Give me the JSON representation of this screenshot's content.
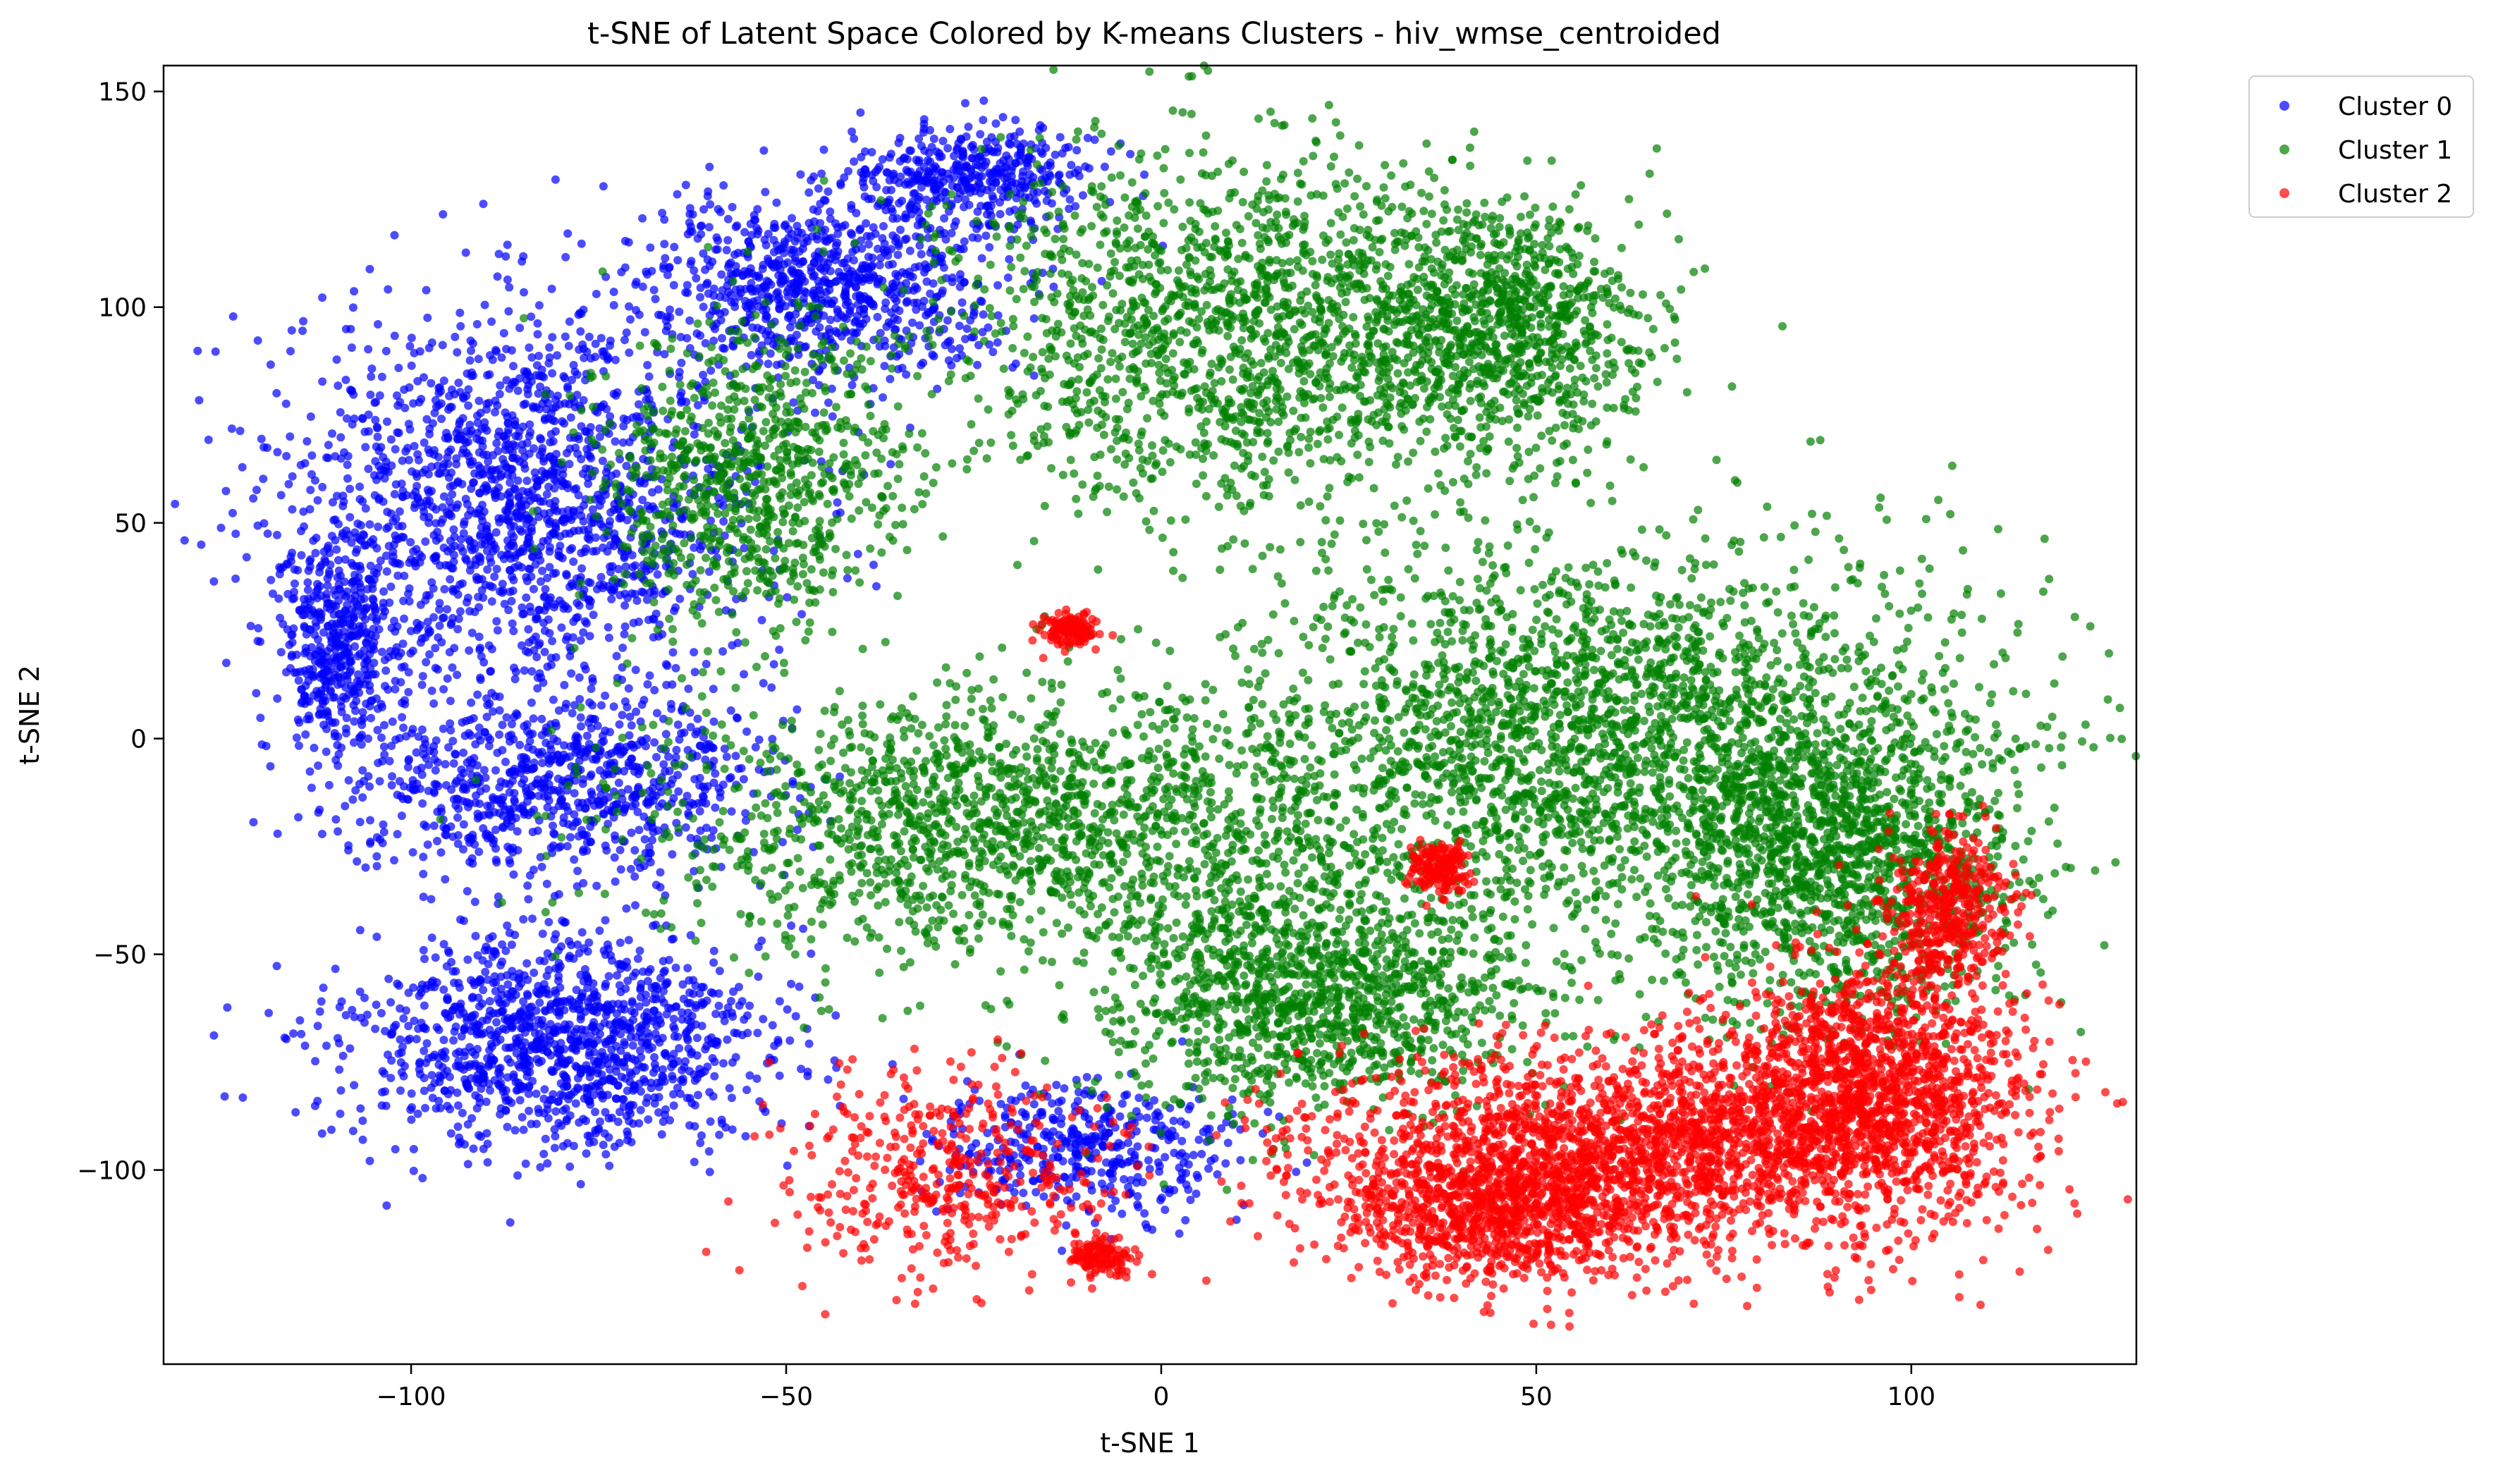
{
  "chart_data": {
    "type": "scatter",
    "title": "t-SNE of Latent Space Colored by K-means Clusters - hiv_wmse_centroided",
    "xlabel": "t-SNE 1",
    "ylabel": "t-SNE 2",
    "xlim": [
      -133,
      130
    ],
    "ylim": [
      -145,
      156
    ],
    "xticks": [
      -100,
      -50,
      0,
      50,
      100
    ],
    "xtick_labels": [
      "−100",
      "−50",
      "0",
      "50",
      "100"
    ],
    "yticks": [
      -100,
      -50,
      0,
      50,
      100,
      150
    ],
    "ytick_labels": [
      "−100",
      "−50",
      "0",
      "50",
      "100",
      "150"
    ],
    "grid": false,
    "legend_position": "outside top-right",
    "series": [
      {
        "name": "Cluster 0",
        "color": "#0000ff",
        "approx_regions": [
          {
            "cx": -85,
            "cy": 55,
            "sx": 16,
            "sy": 22,
            "weight": 4
          },
          {
            "cx": -80,
            "cy": -70,
            "sx": 14,
            "sy": 13,
            "weight": 3
          },
          {
            "cx": -80,
            "cy": -10,
            "sx": 14,
            "sy": 10,
            "weight": 2
          },
          {
            "cx": -45,
            "cy": 105,
            "sx": 12,
            "sy": 10,
            "weight": 2
          },
          {
            "cx": -25,
            "cy": 130,
            "sx": 8,
            "sy": 6,
            "weight": 1
          },
          {
            "cx": -10,
            "cy": -95,
            "sx": 10,
            "sy": 8,
            "weight": 1
          },
          {
            "cx": -110,
            "cy": 20,
            "sx": 4,
            "sy": 12,
            "weight": 1
          }
        ]
      },
      {
        "name": "Cluster 1",
        "color": "#008000",
        "approx_regions": [
          {
            "cx": 10,
            "cy": 95,
            "sx": 20,
            "sy": 20,
            "weight": 4
          },
          {
            "cx": 45,
            "cy": 95,
            "sx": 10,
            "sy": 14,
            "weight": 2
          },
          {
            "cx": -20,
            "cy": -20,
            "sx": 25,
            "sy": 16,
            "weight": 4
          },
          {
            "cx": 60,
            "cy": 0,
            "sx": 25,
            "sy": 22,
            "weight": 6
          },
          {
            "cx": 90,
            "cy": -30,
            "sx": 12,
            "sy": 18,
            "weight": 3
          },
          {
            "cx": 20,
            "cy": -60,
            "sx": 14,
            "sy": 14,
            "weight": 3
          },
          {
            "cx": -55,
            "cy": 60,
            "sx": 10,
            "sy": 18,
            "weight": 2
          }
        ]
      },
      {
        "name": "Cluster 2",
        "color": "#ff0000",
        "approx_regions": [
          {
            "cx": 65,
            "cy": -95,
            "sx": 22,
            "sy": 12,
            "weight": 5
          },
          {
            "cx": 95,
            "cy": -80,
            "sx": 10,
            "sy": 14,
            "weight": 3
          },
          {
            "cx": 45,
            "cy": -110,
            "sx": 10,
            "sy": 8,
            "weight": 2
          },
          {
            "cx": 105,
            "cy": -40,
            "sx": 4,
            "sy": 10,
            "weight": 1
          },
          {
            "cx": -30,
            "cy": -100,
            "sx": 10,
            "sy": 12,
            "weight": 1
          },
          {
            "cx": 37,
            "cy": -30,
            "sx": 2,
            "sy": 3,
            "weight": 0.4
          },
          {
            "cx": -12,
            "cy": 25,
            "sx": 2,
            "sy": 2,
            "weight": 0.3
          },
          {
            "cx": -8,
            "cy": -120,
            "sx": 2,
            "sy": 2,
            "weight": 0.3
          }
        ]
      }
    ]
  }
}
